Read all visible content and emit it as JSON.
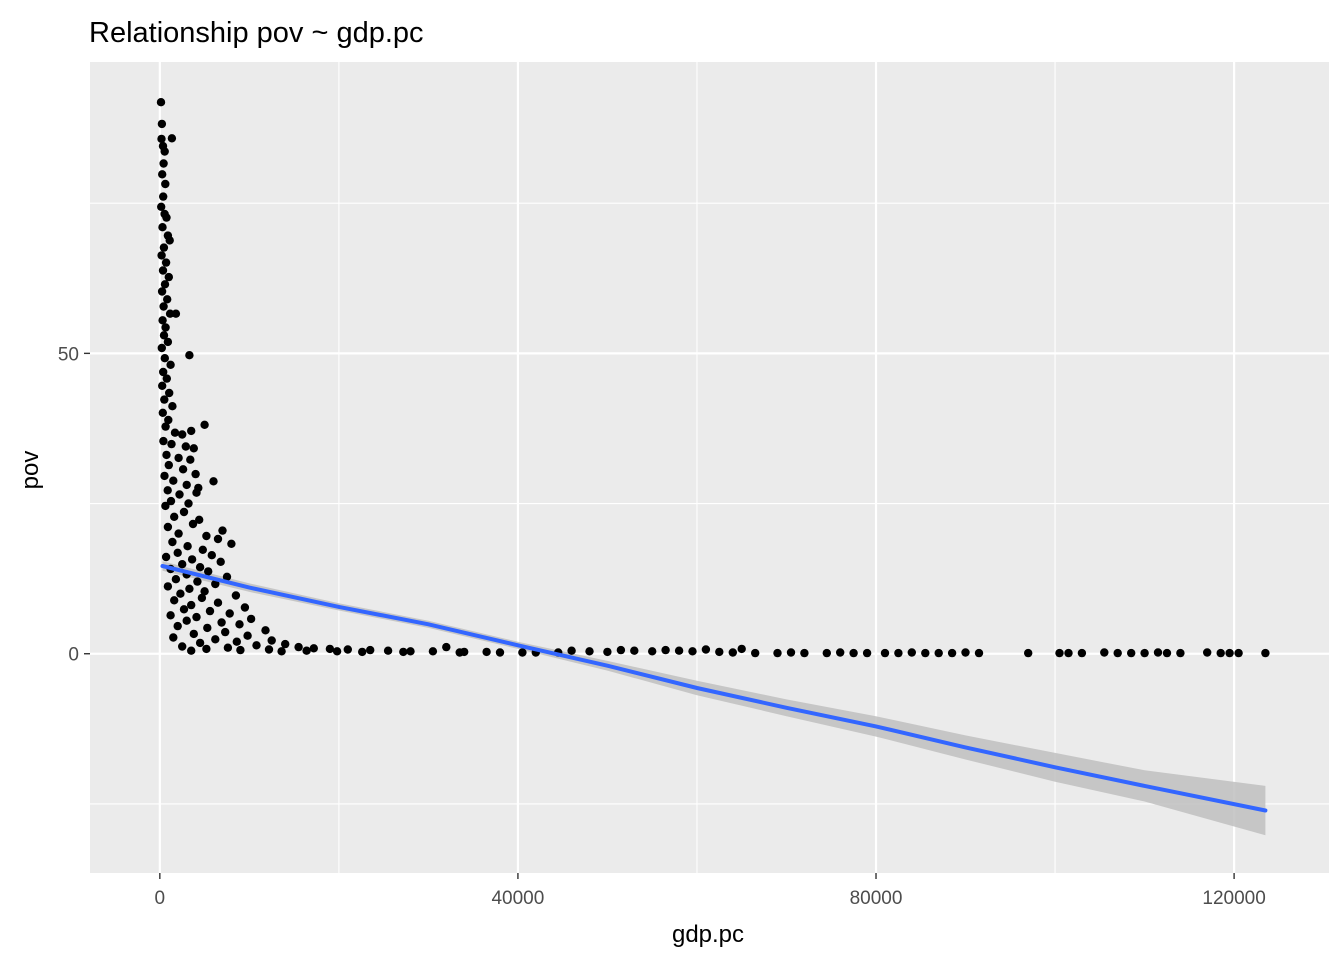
{
  "chart_data": {
    "type": "scatter",
    "title": "Relationship pov ~ gdp.pc",
    "xlabel": "gdp.pc",
    "ylabel": "pov",
    "xlim": [
      -7800,
      130600
    ],
    "ylim": [
      -36.5,
      98.5
    ],
    "x_ticks": [
      {
        "value": 0,
        "label": "0"
      },
      {
        "value": 40000,
        "label": "40000"
      },
      {
        "value": 80000,
        "label": "80000"
      },
      {
        "value": 120000,
        "label": "120000"
      }
    ],
    "y_ticks": [
      {
        "value": 0,
        "label": "0"
      },
      {
        "value": 50,
        "label": "50"
      }
    ],
    "x_minor": [
      20000,
      60000,
      100000
    ],
    "y_minor": [
      -25,
      25,
      75
    ],
    "grid": true,
    "background": "#ebebeb",
    "point_color": "#000000",
    "series": [
      {
        "type": "scatter",
        "points": [
          [
            133,
            91.8
          ],
          [
            237,
            88.2
          ],
          [
            183,
            85.7
          ],
          [
            350,
            84.5
          ],
          [
            540,
            83.6
          ],
          [
            1350,
            85.8
          ],
          [
            420,
            81.6
          ],
          [
            260,
            79.8
          ],
          [
            610,
            78.2
          ],
          [
            380,
            76.1
          ],
          [
            150,
            74.4
          ],
          [
            530,
            73.2
          ],
          [
            750,
            72.6
          ],
          [
            300,
            71.0
          ],
          [
            900,
            69.6
          ],
          [
            1100,
            68.8
          ],
          [
            460,
            67.6
          ],
          [
            200,
            66.3
          ],
          [
            700,
            65.1
          ],
          [
            350,
            63.8
          ],
          [
            1000,
            62.7
          ],
          [
            580,
            61.5
          ],
          [
            250,
            60.3
          ],
          [
            820,
            59.0
          ],
          [
            420,
            57.8
          ],
          [
            1150,
            56.6
          ],
          [
            310,
            55.5
          ],
          [
            650,
            54.3
          ],
          [
            1800,
            56.6
          ],
          [
            470,
            53.0
          ],
          [
            900,
            51.9
          ],
          [
            220,
            50.9
          ],
          [
            3300,
            49.7
          ],
          [
            560,
            49.2
          ],
          [
            1200,
            48.1
          ],
          [
            380,
            46.9
          ],
          [
            780,
            45.8
          ],
          [
            260,
            44.6
          ],
          [
            1050,
            43.4
          ],
          [
            500,
            42.3
          ],
          [
            1400,
            41.2
          ],
          [
            330,
            40.1
          ],
          [
            950,
            38.9
          ],
          [
            650,
            37.8
          ],
          [
            5000,
            38.1
          ],
          [
            1700,
            36.8
          ],
          [
            2500,
            36.5
          ],
          [
            3500,
            37.1
          ],
          [
            400,
            35.4
          ],
          [
            1300,
            34.9
          ],
          [
            2900,
            34.5
          ],
          [
            3800,
            34.2
          ],
          [
            750,
            33.1
          ],
          [
            2100,
            32.6
          ],
          [
            3400,
            32.3
          ],
          [
            1000,
            31.4
          ],
          [
            2600,
            30.7
          ],
          [
            4000,
            29.9
          ],
          [
            520,
            29.6
          ],
          [
            1500,
            28.8
          ],
          [
            6000,
            28.7
          ],
          [
            3000,
            28.1
          ],
          [
            4300,
            27.6
          ],
          [
            880,
            27.2
          ],
          [
            2200,
            26.5
          ],
          [
            4100,
            26.8
          ],
          [
            1250,
            25.4
          ],
          [
            3200,
            25.0
          ],
          [
            620,
            24.6
          ],
          [
            2700,
            23.6
          ],
          [
            1600,
            22.8
          ],
          [
            4400,
            22.3
          ],
          [
            3700,
            21.6
          ],
          [
            900,
            21.1
          ],
          [
            7000,
            20.5
          ],
          [
            2100,
            20.0
          ],
          [
            5200,
            19.6
          ],
          [
            6500,
            19.1
          ],
          [
            8000,
            18.3
          ],
          [
            1400,
            18.6
          ],
          [
            3100,
            17.9
          ],
          [
            4800,
            17.3
          ],
          [
            2000,
            16.8
          ],
          [
            5800,
            16.4
          ],
          [
            700,
            16.1
          ],
          [
            3600,
            15.7
          ],
          [
            6800,
            15.3
          ],
          [
            2500,
            14.9
          ],
          [
            4500,
            14.4
          ],
          [
            1200,
            14.1
          ],
          [
            5400,
            13.7
          ],
          [
            3000,
            13.2
          ],
          [
            7500,
            12.8
          ],
          [
            1800,
            12.4
          ],
          [
            4200,
            12.0
          ],
          [
            6200,
            11.6
          ],
          [
            900,
            11.2
          ],
          [
            3300,
            10.8
          ],
          [
            5000,
            10.4
          ],
          [
            2300,
            10.0
          ],
          [
            8500,
            9.7
          ],
          [
            4700,
            9.3
          ],
          [
            1600,
            8.9
          ],
          [
            6500,
            8.5
          ],
          [
            3500,
            8.1
          ],
          [
            9500,
            7.7
          ],
          [
            2700,
            7.4
          ],
          [
            5600,
            7.1
          ],
          [
            7800,
            6.7
          ],
          [
            1200,
            6.4
          ],
          [
            4100,
            6.1
          ],
          [
            10200,
            5.8
          ],
          [
            3000,
            5.5
          ],
          [
            6900,
            5.2
          ],
          [
            8900,
            4.9
          ],
          [
            2000,
            4.6
          ],
          [
            5300,
            4.3
          ],
          [
            11800,
            3.9
          ],
          [
            7300,
            3.6
          ],
          [
            3800,
            3.3
          ],
          [
            9800,
            3.0
          ],
          [
            1500,
            2.7
          ],
          [
            6200,
            2.4
          ],
          [
            12500,
            2.2
          ],
          [
            8600,
            2.0
          ],
          [
            4500,
            1.8
          ],
          [
            14000,
            1.6
          ],
          [
            10800,
            1.4
          ],
          [
            2500,
            1.2
          ],
          [
            15500,
            1.1
          ],
          [
            7600,
            1.0
          ],
          [
            17200,
            0.9
          ],
          [
            5200,
            0.8
          ],
          [
            19000,
            0.8
          ],
          [
            12200,
            0.7
          ],
          [
            21000,
            0.7
          ],
          [
            9000,
            0.6
          ],
          [
            23500,
            0.6
          ],
          [
            3500,
            0.5
          ],
          [
            25500,
            0.5
          ],
          [
            16400,
            0.5
          ],
          [
            28000,
            0.4
          ],
          [
            13600,
            0.4
          ],
          [
            30500,
            0.4
          ],
          [
            19800,
            0.4
          ],
          [
            32000,
            1.1
          ],
          [
            34000,
            0.3
          ],
          [
            22600,
            0.3
          ],
          [
            36500,
            0.3
          ],
          [
            27200,
            0.3
          ],
          [
            38000,
            0.2
          ],
          [
            33500,
            0.2
          ],
          [
            40500,
            0.2
          ],
          [
            42000,
            0.2
          ],
          [
            44500,
            0.2
          ],
          [
            46000,
            0.5
          ],
          [
            48000,
            0.4
          ],
          [
            50000,
            0.3
          ],
          [
            51500,
            0.6
          ],
          [
            53000,
            0.5
          ],
          [
            55000,
            0.4
          ],
          [
            56500,
            0.6
          ],
          [
            58000,
            0.5
          ],
          [
            59500,
            0.4
          ],
          [
            61000,
            0.7
          ],
          [
            62500,
            0.3
          ],
          [
            64000,
            0.2
          ],
          [
            65000,
            0.8
          ],
          [
            66500,
            0.1
          ],
          [
            69000,
            0.1
          ],
          [
            70500,
            0.2
          ],
          [
            72000,
            0.1
          ],
          [
            74500,
            0.1
          ],
          [
            76000,
            0.2
          ],
          [
            77500,
            0.1
          ],
          [
            79000,
            0.1
          ],
          [
            81000,
            0.1
          ],
          [
            82500,
            0.1
          ],
          [
            84000,
            0.2
          ],
          [
            85500,
            0.1
          ],
          [
            87000,
            0.1
          ],
          [
            88500,
            0.1
          ],
          [
            90000,
            0.2
          ],
          [
            91500,
            0.1
          ],
          [
            97000,
            0.1
          ],
          [
            100500,
            0.1
          ],
          [
            101500,
            0.1
          ],
          [
            103000,
            0.1
          ],
          [
            105500,
            0.2
          ],
          [
            107000,
            0.1
          ],
          [
            108500,
            0.1
          ],
          [
            110000,
            0.1
          ],
          [
            111500,
            0.2
          ],
          [
            112500,
            0.1
          ],
          [
            114000,
            0.1
          ],
          [
            117000,
            0.2
          ],
          [
            118500,
            0.1
          ],
          [
            119500,
            0.1
          ],
          [
            120500,
            0.1
          ],
          [
            123500,
            0.1
          ]
        ]
      },
      {
        "type": "smooth",
        "color": "#3366ff",
        "band_color": "#c0c0c0",
        "x": [
          300,
          10000,
          20000,
          30000,
          40000,
          50000,
          60000,
          70000,
          80000,
          90000,
          100000,
          110000,
          123500
        ],
        "y": [
          14.6,
          11.0,
          7.8,
          4.9,
          1.4,
          -2.0,
          -5.7,
          -9.0,
          -12.1,
          -15.6,
          -18.9,
          -22.0,
          -26.1
        ],
        "lower": [
          13.8,
          10.3,
          7.2,
          4.3,
          0.8,
          -2.8,
          -6.9,
          -10.4,
          -13.8,
          -17.6,
          -21.3,
          -24.6,
          -30.2
        ],
        "upper": [
          15.4,
          11.7,
          8.4,
          5.5,
          2.0,
          -1.2,
          -4.5,
          -7.6,
          -10.4,
          -13.6,
          -16.5,
          -19.4,
          -22.0
        ]
      }
    ]
  }
}
